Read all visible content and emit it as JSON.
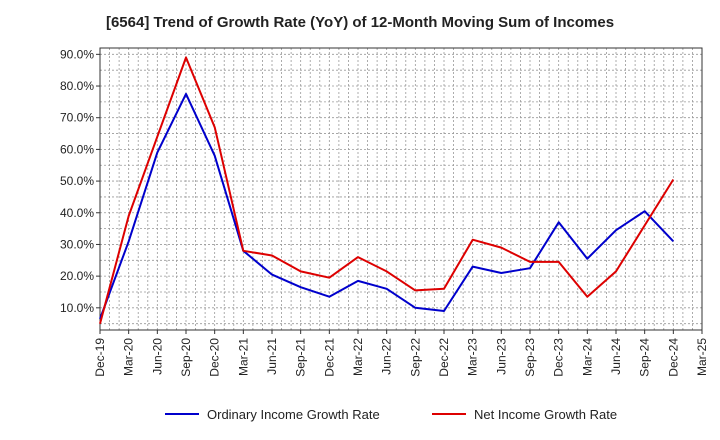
{
  "chart_data": {
    "type": "line",
    "title": "[6564]  Trend of Growth Rate (YoY) of 12-Month Moving Sum of Incomes",
    "xlabel": "",
    "ylabel": "",
    "categories": [
      "Dec-19",
      "Mar-20",
      "Jun-20",
      "Sep-20",
      "Dec-20",
      "Mar-21",
      "Jun-21",
      "Sep-21",
      "Dec-21",
      "Mar-22",
      "Jun-22",
      "Sep-22",
      "Dec-22",
      "Mar-23",
      "Jun-23",
      "Sep-23",
      "Dec-23",
      "Mar-24",
      "Jun-24",
      "Sep-24",
      "Dec-24",
      "Mar-25"
    ],
    "y_ticks": [
      "10.0%",
      "20.0%",
      "30.0%",
      "40.0%",
      "50.0%",
      "60.0%",
      "70.0%",
      "80.0%",
      "90.0%"
    ],
    "ylim": [
      3,
      92
    ],
    "grid": true,
    "legend_position": "bottom",
    "series": [
      {
        "name": "Ordinary Income Growth Rate",
        "color": "#0000cc",
        "values": [
          6.5,
          31,
          59,
          77.5,
          58,
          28,
          20.5,
          16.5,
          13.5,
          18.5,
          16,
          10,
          9,
          23,
          21,
          22.5,
          37,
          25.5,
          34.5,
          40.5,
          31,
          null
        ]
      },
      {
        "name": "Net Income Growth Rate",
        "color": "#dd0000",
        "values": [
          5,
          39,
          64,
          89,
          67,
          28,
          26.5,
          21.5,
          19.5,
          26,
          21.5,
          15.5,
          16,
          31.5,
          29,
          24.5,
          24.5,
          13.5,
          21.5,
          36,
          50.5,
          null
        ]
      }
    ]
  }
}
